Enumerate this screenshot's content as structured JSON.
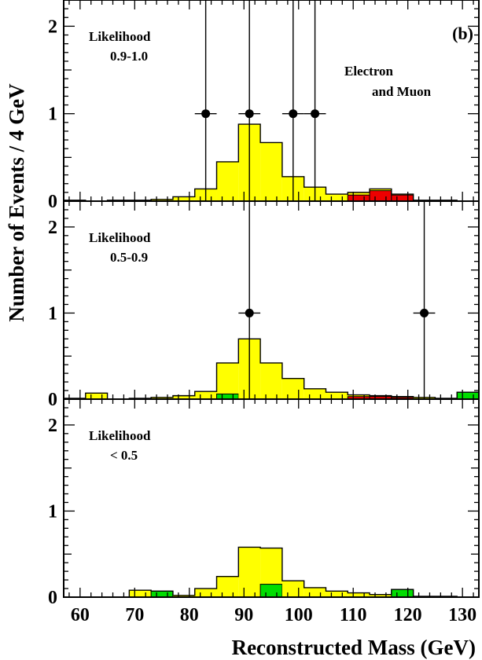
{
  "chart_data": {
    "type": "histogram",
    "figure_label": "(b)",
    "xlabel": "Reconstructed Mass (GeV)",
    "ylabel": "Number of Events / 4 GeV",
    "xlim": [
      57,
      133
    ],
    "ylim": [
      0,
      2.3
    ],
    "bin_width": 4,
    "x_tick_labels": [
      "60",
      "70",
      "80",
      "90",
      "100",
      "110",
      "120",
      "130"
    ],
    "y_tick_labels": [
      "0",
      "1",
      "2"
    ],
    "colors": {
      "yellow": "#ffff00",
      "red": "#ee0000",
      "green": "#00dd00",
      "data": "#000000"
    },
    "panels": [
      {
        "title_line1": "Likelihood",
        "title_line2": "0.9-1.0",
        "annotation_line1": "Electron",
        "annotation_line2": "and Muon",
        "bin_edges": [
          57,
          61,
          65,
          69,
          73,
          77,
          81,
          85,
          89,
          93,
          97,
          101,
          105,
          109,
          113,
          117,
          121,
          125,
          129,
          133
        ],
        "yellow": [
          0.01,
          0.0,
          0.01,
          0.01,
          0.02,
          0.05,
          0.14,
          0.45,
          0.88,
          0.67,
          0.28,
          0.16,
          0.08,
          0.1,
          0.14,
          0.08,
          0.01,
          0.01,
          0.0
        ],
        "red": [
          0,
          0,
          0,
          0,
          0,
          0,
          0,
          0,
          0,
          0,
          0,
          0,
          0,
          0.07,
          0.12,
          0.07,
          0,
          0,
          0
        ],
        "green": [
          0,
          0,
          0,
          0,
          0,
          0,
          0,
          0,
          0,
          0,
          0,
          0,
          0,
          0,
          0,
          0,
          0,
          0,
          0
        ],
        "data_points": [
          {
            "x": 83,
            "y": 1,
            "y_high": 2.3
          },
          {
            "x": 91,
            "y": 1,
            "y_high": 2.3
          },
          {
            "x": 99,
            "y": 1,
            "y_high": 2.3
          },
          {
            "x": 103,
            "y": 1,
            "y_high": 2.3
          }
        ]
      },
      {
        "title_line1": "Likelihood",
        "title_line2": "0.5-0.9",
        "annotation_line1": "",
        "annotation_line2": "",
        "bin_edges": [
          57,
          61,
          65,
          69,
          73,
          77,
          81,
          85,
          89,
          93,
          97,
          101,
          105,
          109,
          113,
          117,
          121,
          125,
          129,
          133
        ],
        "yellow": [
          0.01,
          0.07,
          0.0,
          0.01,
          0.02,
          0.04,
          0.09,
          0.42,
          0.7,
          0.42,
          0.24,
          0.12,
          0.08,
          0.05,
          0.04,
          0.03,
          0.02,
          0.01,
          0.08
        ],
        "red": [
          0,
          0,
          0,
          0,
          0,
          0,
          0,
          0,
          0,
          0,
          0,
          0,
          0,
          0.03,
          0.03,
          0.02,
          0,
          0,
          0
        ],
        "green": [
          0,
          0,
          0,
          0,
          0,
          0,
          0,
          0.06,
          0,
          0,
          0,
          0,
          0,
          0,
          0,
          0,
          0,
          0,
          0.08
        ],
        "data_points": [
          {
            "x": 91,
            "y": 1,
            "y_high": 2.3
          },
          {
            "x": 123,
            "y": 1,
            "y_high": 2.3
          }
        ]
      },
      {
        "title_line1": "Likelihood",
        "title_line2": "< 0.5",
        "annotation_line1": "",
        "annotation_line2": "",
        "bin_edges": [
          57,
          61,
          65,
          69,
          73,
          77,
          81,
          85,
          89,
          93,
          97,
          101,
          105,
          109,
          113,
          117,
          121,
          125,
          129,
          133
        ],
        "yellow": [
          0.0,
          0.0,
          0.0,
          0.08,
          0.07,
          0.02,
          0.1,
          0.24,
          0.58,
          0.57,
          0.19,
          0.11,
          0.07,
          0.05,
          0.03,
          0.09,
          0.01,
          0.01,
          0.0
        ],
        "red": [
          0,
          0,
          0,
          0,
          0,
          0,
          0,
          0,
          0,
          0,
          0,
          0,
          0,
          0,
          0,
          0,
          0,
          0,
          0
        ],
        "green": [
          0,
          0,
          0,
          0,
          0.07,
          0,
          0,
          0,
          0,
          0.15,
          0,
          0,
          0,
          0,
          0,
          0.09,
          0,
          0,
          0
        ],
        "data_points": []
      }
    ]
  }
}
